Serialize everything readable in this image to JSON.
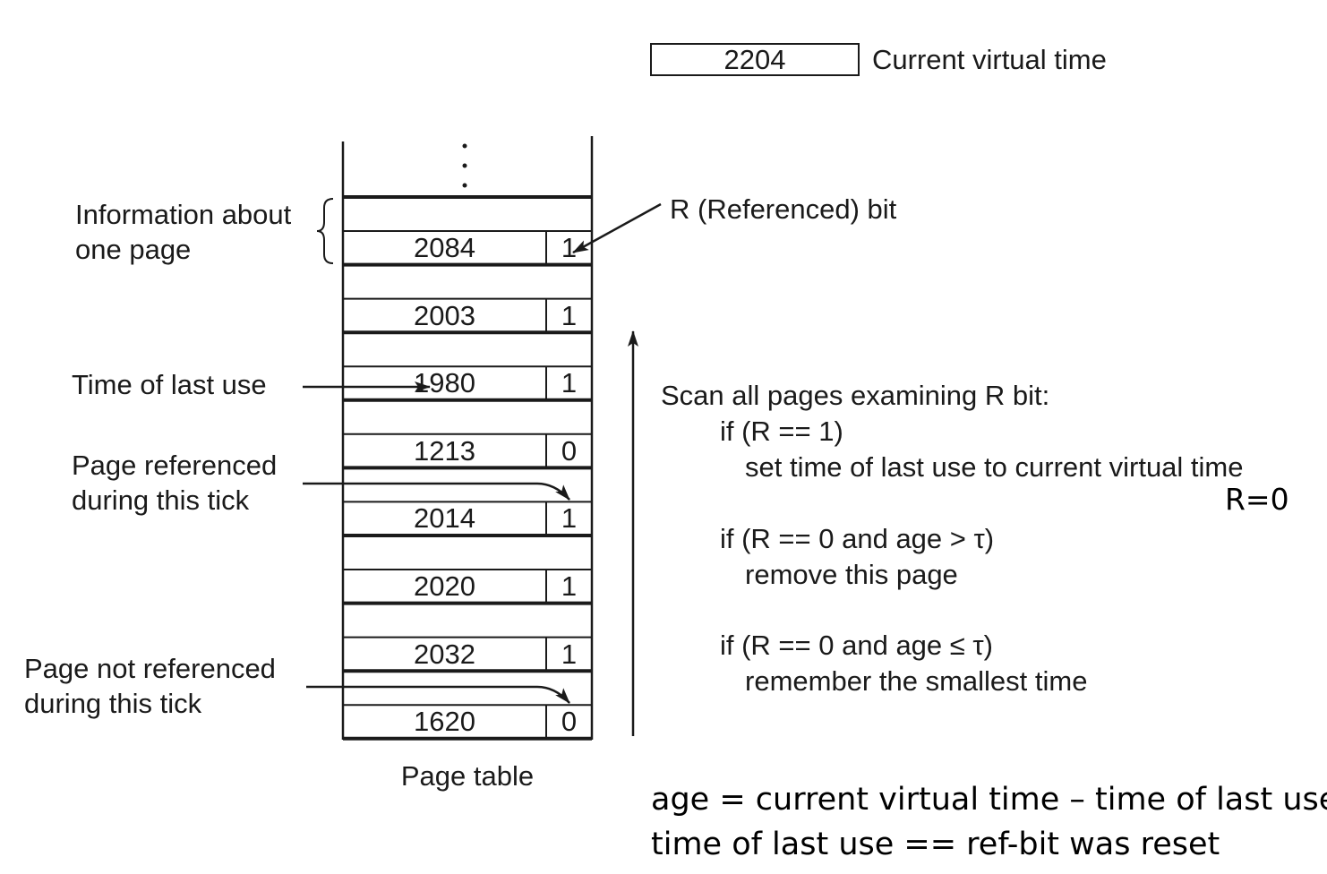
{
  "current_time": {
    "value": "2204",
    "label": "Current virtual time"
  },
  "table": {
    "caption": "Page table",
    "ellipsis": ". . .",
    "rows": [
      {
        "time": "2084",
        "rbit": "1"
      },
      {
        "time": "2003",
        "rbit": "1"
      },
      {
        "time": "1980",
        "rbit": "1"
      },
      {
        "time": "1213",
        "rbit": "0"
      },
      {
        "time": "2014",
        "rbit": "1"
      },
      {
        "time": "2020",
        "rbit": "1"
      },
      {
        "time": "2032",
        "rbit": "1"
      },
      {
        "time": "1620",
        "rbit": "0"
      }
    ]
  },
  "labels": {
    "info_line1": "Information about",
    "info_line2": "one page",
    "rbit_label": "R (Referenced) bit",
    "time_last_use": "Time of last use",
    "page_ref_line1": "Page referenced",
    "page_ref_line2": "during this tick",
    "page_notref_line1": "Page not referenced",
    "page_notref_line2": "during this tick"
  },
  "algorithm": {
    "line1": "Scan all pages examining R bit:",
    "line2": "if (R == 1)",
    "line3": "set time of last use to current virtual time",
    "line4": "R=0",
    "line5": "if (R == 0 and age > τ)",
    "line6": "remove this page",
    "line7": "if (R == 0 and age ≤ τ)",
    "line8": "remember the smallest time"
  },
  "notes": {
    "age_formula": "age = current virtual time – time of last use",
    "reset_note": "time of last use == ref-bit was reset"
  }
}
